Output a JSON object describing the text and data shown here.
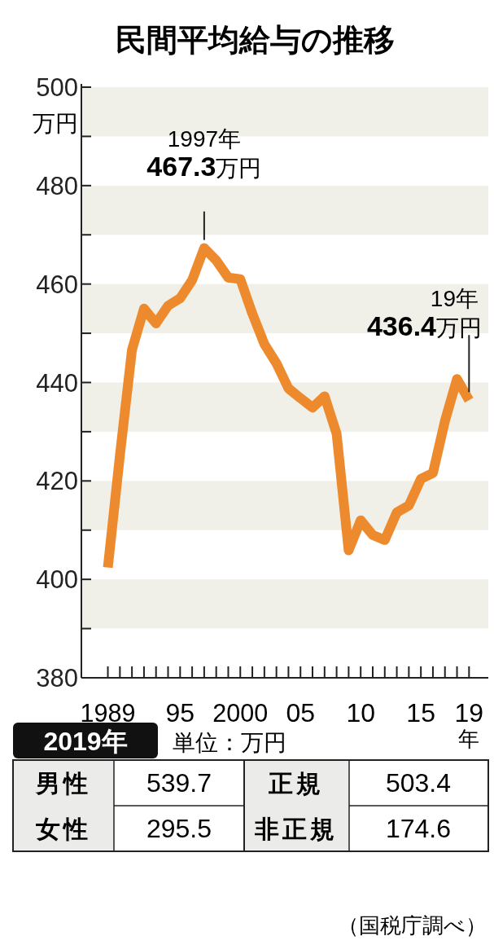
{
  "chart_data": {
    "type": "line",
    "title": "民間平均給与の推移",
    "ylabel": "万円",
    "xlabel": "年",
    "x": [
      1989,
      1990,
      1991,
      1992,
      1993,
      1994,
      1995,
      1996,
      1997,
      1998,
      1999,
      2000,
      2001,
      2002,
      2003,
      2004,
      2005,
      2006,
      2007,
      2008,
      2009,
      2010,
      2011,
      2012,
      2013,
      2014,
      2015,
      2016,
      2017,
      2018,
      2019
    ],
    "series": [
      {
        "color": "#ee8a2e",
        "values": [
          402.4,
          425.2,
          446.6,
          455.0,
          452.0,
          455.6,
          457.1,
          460.8,
          467.3,
          464.8,
          461.3,
          461.0,
          454.0,
          447.8,
          443.9,
          438.8,
          436.8,
          434.9,
          437.2,
          429.6,
          405.9,
          412.0,
          409.0,
          408.0,
          413.6,
          415.0,
          420.4,
          421.6,
          432.2,
          440.7,
          436.4
        ]
      }
    ],
    "xlim": [
      1986.8,
      2020.6
    ],
    "xticks": [
      {
        "value": 1989,
        "label": "1989"
      },
      {
        "value": 1990,
        "label": null
      },
      {
        "value": 1991,
        "label": null
      },
      {
        "value": 1992,
        "label": null
      },
      {
        "value": 1993,
        "label": null
      },
      {
        "value": 1994,
        "label": null
      },
      {
        "value": 1995,
        "label": "95"
      },
      {
        "value": 1996,
        "label": null
      },
      {
        "value": 1997,
        "label": null
      },
      {
        "value": 1998,
        "label": null
      },
      {
        "value": 1999,
        "label": null
      },
      {
        "value": 2000,
        "label": "2000"
      },
      {
        "value": 2001,
        "label": null
      },
      {
        "value": 2002,
        "label": null
      },
      {
        "value": 2003,
        "label": null
      },
      {
        "value": 2004,
        "label": null
      },
      {
        "value": 2005,
        "label": "05"
      },
      {
        "value": 2006,
        "label": null
      },
      {
        "value": 2007,
        "label": null
      },
      {
        "value": 2008,
        "label": null
      },
      {
        "value": 2009,
        "label": null
      },
      {
        "value": 2010,
        "label": "10"
      },
      {
        "value": 2011,
        "label": null
      },
      {
        "value": 2012,
        "label": null
      },
      {
        "value": 2013,
        "label": null
      },
      {
        "value": 2014,
        "label": null
      },
      {
        "value": 2015,
        "label": "15"
      },
      {
        "value": 2016,
        "label": null
      },
      {
        "value": 2017,
        "label": null
      },
      {
        "value": 2018,
        "label": null
      },
      {
        "value": 2019,
        "label": "19"
      }
    ],
    "ylim": [
      380,
      500
    ],
    "yticks": [
      380,
      {
        "value": 390,
        "label": null
      },
      400,
      {
        "value": 410,
        "label": null
      },
      420,
      {
        "value": 430,
        "label": null
      },
      440,
      {
        "value": 450,
        "label": null
      },
      460,
      {
        "value": 470,
        "label": null
      },
      480,
      {
        "value": 490,
        "label": null
      },
      500
    ],
    "bands": [
      {
        "axis": "y",
        "from": 490,
        "to": 500,
        "color": "#f1f0e8"
      },
      {
        "axis": "y",
        "from": 470,
        "to": 480,
        "color": "#f1f0e8"
      },
      {
        "axis": "y",
        "from": 450,
        "to": 460,
        "color": "#f1f0e8"
      },
      {
        "axis": "y",
        "from": 430,
        "to": 440,
        "color": "#f1f0e8"
      },
      {
        "axis": "y",
        "from": 410,
        "to": 420,
        "color": "#f1f0e8"
      },
      {
        "axis": "y",
        "from": 390,
        "to": 400,
        "color": "#f1f0e8"
      }
    ],
    "marker": "none",
    "line_style": "solid",
    "annotations": [
      {
        "text": "1997年\n467.3万円",
        "x": 1997,
        "y": 467.3
      },
      {
        "text": "19年\n436.4万円",
        "x": 2019,
        "y": 436.4
      },
      "2019年",
      "単位：万円",
      "男性",
      "539.7",
      "正規",
      "503.4",
      "女性",
      "295.5",
      "非正規",
      "174.6",
      "（国税庁調べ）"
    ]
  }
}
